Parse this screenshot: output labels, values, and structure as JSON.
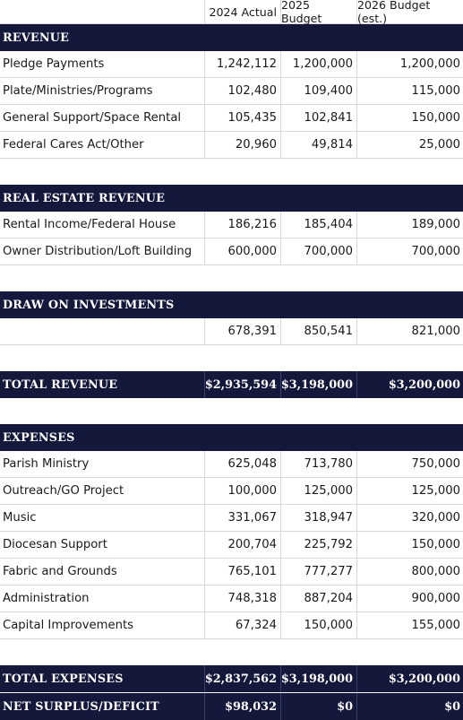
{
  "columns": [
    "",
    "2024 Actual",
    "2025 Budget",
    "2026 Budget (est.)"
  ],
  "revenue": {
    "heading": "REVENUE",
    "rows": [
      {
        "label": "Pledge Payments",
        "a2024": "1,242,112",
        "b2025": "1,200,000",
        "b2026": "1,200,000"
      },
      {
        "label": "Plate/Ministries/Programs",
        "a2024": "102,480",
        "b2025": "109,400",
        "b2026": "115,000"
      },
      {
        "label": "General Support/Space Rental",
        "a2024": "105,435",
        "b2025": "102,841",
        "b2026": "150,000"
      },
      {
        "label": "Federal Cares Act/Other",
        "a2024": "20,960",
        "b2025": "49,814",
        "b2026": "25,000"
      }
    ]
  },
  "real_estate": {
    "heading": "REAL ESTATE REVENUE",
    "rows": [
      {
        "label": "Rental Income/Federal House",
        "a2024": "186,216",
        "b2025": "185,404",
        "b2026": "189,000"
      },
      {
        "label": "Owner Distribution/Loft Building",
        "a2024": "600,000",
        "b2025": "700,000",
        "b2026": "700,000"
      }
    ]
  },
  "investments": {
    "heading": "DRAW ON INVESTMENTS",
    "rows": [
      {
        "label": "",
        "a2024": "678,391",
        "b2025": "850,541",
        "b2026": "821,000"
      }
    ]
  },
  "total_revenue": {
    "label": "TOTAL REVENUE",
    "a2024": "$2,935,594",
    "b2025": "$3,198,000",
    "b2026": "$3,200,000"
  },
  "expenses": {
    "heading": "EXPENSES",
    "rows": [
      {
        "label": "Parish Ministry",
        "a2024": "625,048",
        "b2025": "713,780",
        "b2026": "750,000"
      },
      {
        "label": "Outreach/GO Project",
        "a2024": "100,000",
        "b2025": "125,000",
        "b2026": "125,000"
      },
      {
        "label": "Music",
        "a2024": "331,067",
        "b2025": "318,947",
        "b2026": "320,000"
      },
      {
        "label": "Diocesan Support",
        "a2024": "200,704",
        "b2025": "225,792",
        "b2026": "150,000"
      },
      {
        "label": "Fabric and Grounds",
        "a2024": "765,101",
        "b2025": "777,277",
        "b2026": "800,000"
      },
      {
        "label": "Administration",
        "a2024": "748,318",
        "b2025": "887,204",
        "b2026": "900,000"
      },
      {
        "label": "Capital Improvements",
        "a2024": "67,324",
        "b2025": "150,000",
        "b2026": "155,000"
      }
    ]
  },
  "total_expenses": {
    "label": "TOTAL EXPENSES",
    "a2024": "$2,837,562",
    "b2025": "$3,198,000",
    "b2026": "$3,200,000"
  },
  "net_surplus": {
    "label": "NET SURPLUS/DEFICIT",
    "a2024": "$98,032",
    "b2025": "$0",
    "b2026": "$0"
  },
  "colors": {
    "band": "#14183a",
    "rule": "#d9d9d9",
    "text": "#1a1a1a"
  }
}
